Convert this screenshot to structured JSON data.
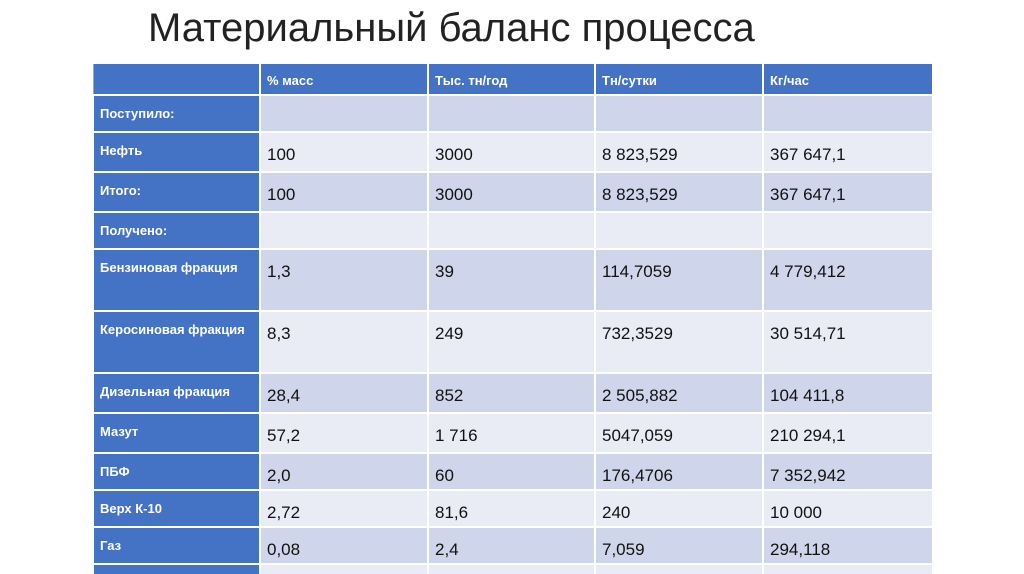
{
  "title": "Материальный баланс процесса",
  "table": {
    "columns": [
      "",
      "% масс",
      "Тыс. тн/год",
      "Тн/сутки",
      "Кг/час"
    ],
    "rows": [
      {
        "label": "Поступило:",
        "values": [
          "",
          "",
          "",
          ""
        ]
      },
      {
        "label": "Нефть",
        "values": [
          "100",
          "3000",
          "8 823,529",
          "367 647,1"
        ]
      },
      {
        "label": "Итого:",
        "values": [
          "100",
          "3000",
          "8 823,529",
          "367 647,1"
        ]
      },
      {
        "label": "Получено:",
        "values": [
          "",
          "",
          "",
          ""
        ]
      },
      {
        "label": "Бензиновая фракция",
        "values": [
          "1,3",
          "39",
          "114,7059",
          "4 779,412"
        ]
      },
      {
        "label": "Керосиновая фракция",
        "values": [
          "8,3",
          "249",
          "732,3529",
          "30 514,71"
        ]
      },
      {
        "label": "Дизельная фракция",
        "values": [
          "28,4",
          "852",
          "2 505,882",
          "104 411,8"
        ]
      },
      {
        "label": "Мазут",
        "values": [
          "57,2",
          "1 716",
          "5047,059",
          "210 294,1"
        ]
      },
      {
        "label": "ПБФ",
        "values": [
          "2,0",
          "60",
          "176,4706",
          "7 352,942"
        ]
      },
      {
        "label": "Верх К-10",
        "values": [
          "2,72",
          "81,6",
          "240",
          "10 000"
        ]
      },
      {
        "label": "Газ",
        "values": [
          "0,08",
          "2,4",
          "7,059",
          "294,118"
        ]
      },
      {
        "label": "",
        "values": [
          "",
          "",
          "",
          ""
        ]
      }
    ]
  }
}
